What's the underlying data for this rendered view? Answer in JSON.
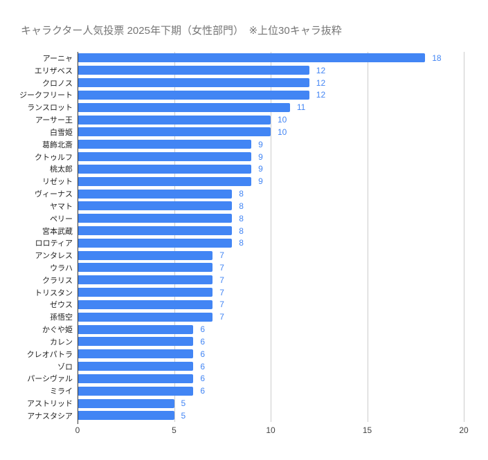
{
  "colors": {
    "background": "#ffffff",
    "bar": "#4285f4",
    "value_label": "#4285f4",
    "gridline": "#cccccc",
    "baseline": "#333333",
    "title": "#757575",
    "category_label": "#222222",
    "axis_label": "#424242"
  },
  "chart_data": {
    "type": "bar",
    "orientation": "horizontal",
    "title": "キャラクター人気投票 2025年下期（女性部門）　※上位30キャラ抜粋",
    "xlabel": "",
    "ylabel": "",
    "xlim": [
      0,
      20
    ],
    "x_ticks": [
      0,
      5,
      10,
      15,
      20
    ],
    "grid": true,
    "legend": "none",
    "data_labels": true,
    "categories": [
      "アーニャ",
      "エリザベス",
      "クロノス",
      "ジークフリート",
      "ランスロット",
      "アーサー王",
      "白雪姫",
      "葛飾北斎",
      "クトゥルフ",
      "桃太郎",
      "リゼット",
      "ヴィーナス",
      "ヤマト",
      "ペリー",
      "宮本武蔵",
      "ロロティア",
      "アンタレス",
      "ウラハ",
      "クラリス",
      "トリスタン",
      "ゼウス",
      "孫悟空",
      "かぐや姫",
      "カレン",
      "クレオパトラ",
      "ゾロ",
      "パーシヴァル",
      "ミライ",
      "アストリッド",
      "アナスタシア"
    ],
    "values": [
      18,
      12,
      12,
      12,
      11,
      10,
      10,
      9,
      9,
      9,
      9,
      8,
      8,
      8,
      8,
      8,
      7,
      7,
      7,
      7,
      7,
      7,
      6,
      6,
      6,
      6,
      6,
      6,
      5,
      5
    ]
  }
}
